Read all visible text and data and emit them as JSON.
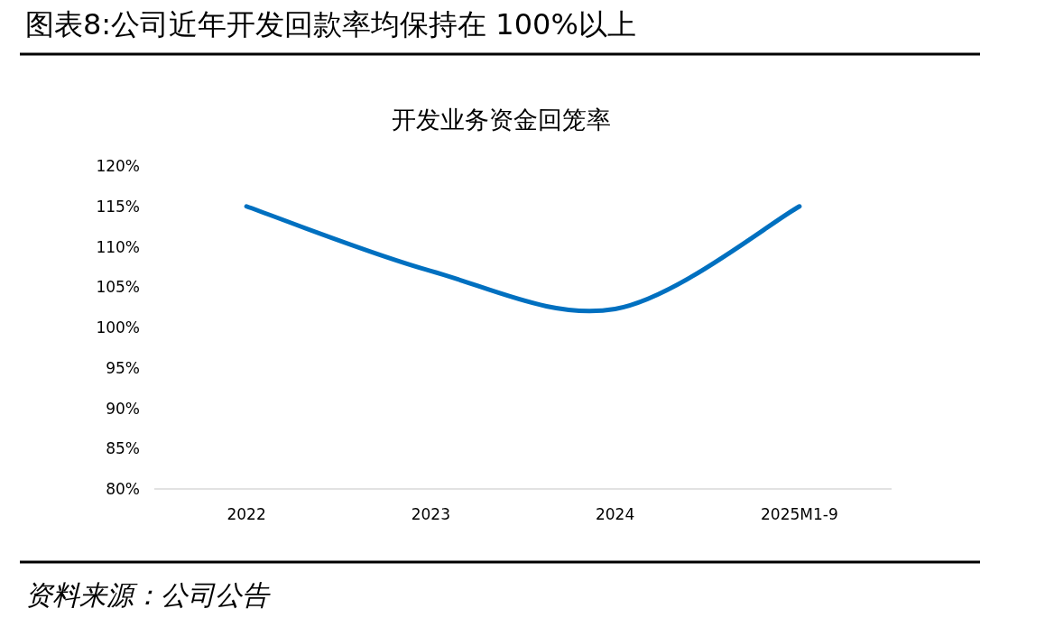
{
  "chart_data": {
    "type": "line",
    "title": "图表8:公司近年开发回款率均保持在 100%以上",
    "subtitle": "开发业务资金回笼率",
    "categories": [
      "2022",
      "2023",
      "2024",
      "2025M1-9"
    ],
    "series": [
      {
        "color": "#0070c0",
        "values": [
          115,
          107,
          102.3,
          115
        ]
      }
    ],
    "ylim": [
      80,
      120
    ],
    "yticks": [
      {
        "value": 80,
        "label": "80%"
      },
      {
        "value": 85,
        "label": "85%"
      },
      {
        "value": 90,
        "label": "90%"
      },
      {
        "value": 95,
        "label": "95%"
      },
      {
        "value": 100,
        "label": "100%"
      },
      {
        "value": 105,
        "label": "105%"
      },
      {
        "value": 110,
        "label": "110%"
      },
      {
        "value": 115,
        "label": "115%"
      },
      {
        "value": 120,
        "label": "120%"
      }
    ],
    "marker": "none",
    "line_style": "solid",
    "annotations": [
      "资料来源：公司公告"
    ]
  }
}
